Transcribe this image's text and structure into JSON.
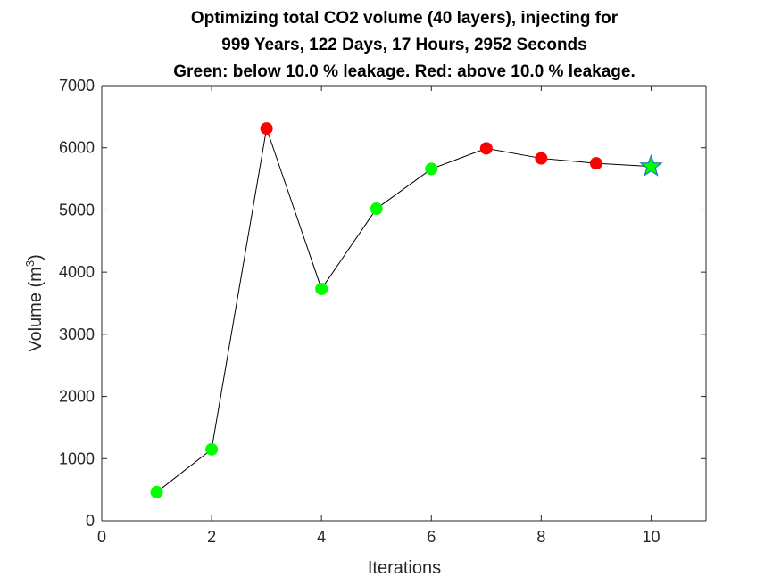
{
  "chart_data": {
    "type": "scatter",
    "title_lines": [
      "Optimizing total CO2 volume (40 layers), injecting for",
      "999 Years, 122 Days, 17 Hours, 2952 Seconds",
      "Green: below 10.0 % leakage. Red: above 10.0 % leakage."
    ],
    "xlabel": "Iterations",
    "ylabel": "Volume (m",
    "ylabel_superscript": "3",
    "ylabel_suffix": ")",
    "xlim": [
      0,
      11
    ],
    "ylim": [
      0,
      7000
    ],
    "xticks": [
      0,
      2,
      4,
      6,
      8,
      10
    ],
    "yticks": [
      0,
      1000,
      2000,
      3000,
      4000,
      5000,
      6000,
      7000
    ],
    "grid": false,
    "colors": {
      "below": "#00ff00",
      "above": "#ff0000",
      "line": "#000000",
      "star_fill": "#00ff00",
      "star_edge": "#1f77b4"
    },
    "points": [
      {
        "x": 1,
        "y": 460,
        "status": "below"
      },
      {
        "x": 2,
        "y": 1150,
        "status": "below"
      },
      {
        "x": 3,
        "y": 6310,
        "status": "above"
      },
      {
        "x": 4,
        "y": 3730,
        "status": "below"
      },
      {
        "x": 5,
        "y": 5020,
        "status": "below"
      },
      {
        "x": 6,
        "y": 5660,
        "status": "below"
      },
      {
        "x": 7,
        "y": 5990,
        "status": "above"
      },
      {
        "x": 8,
        "y": 5830,
        "status": "above"
      },
      {
        "x": 9,
        "y": 5750,
        "status": "above"
      },
      {
        "x": 10,
        "y": 5700,
        "status": "best"
      }
    ]
  }
}
